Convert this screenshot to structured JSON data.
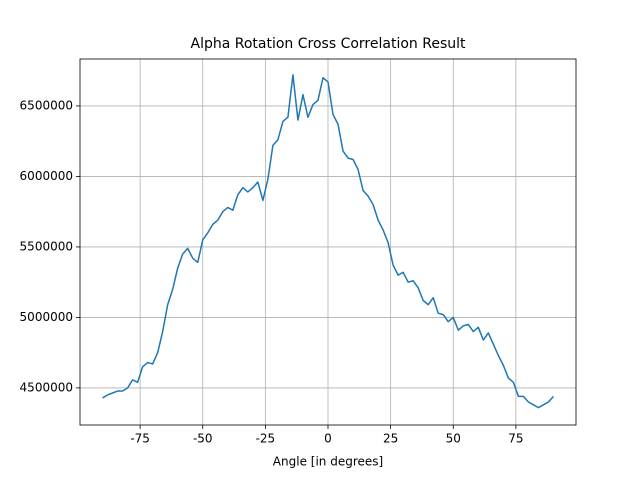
{
  "chart_data": {
    "type": "line",
    "title": "Alpha Rotation Cross Correlation Result",
    "xlabel": "Angle [in degrees]",
    "x": [
      -90,
      -88,
      -86,
      -84,
      -82,
      -80,
      -78,
      -76,
      -74,
      -72,
      -70,
      -68,
      -66,
      -64,
      -62,
      -60,
      -58,
      -56,
      -54,
      -52,
      -50,
      -48,
      -46,
      -44,
      -42,
      -40,
      -38,
      -36,
      -34,
      -32,
      -30,
      -28,
      -26,
      -24,
      -22,
      -20,
      -18,
      -16,
      -14,
      -12,
      -10,
      -8,
      -6,
      -4,
      -2,
      0,
      2,
      4,
      6,
      8,
      10,
      12,
      14,
      16,
      18,
      20,
      22,
      24,
      26,
      28,
      30,
      32,
      34,
      36,
      38,
      40,
      42,
      44,
      46,
      48,
      50,
      52,
      54,
      56,
      58,
      60,
      62,
      64,
      66,
      68,
      70,
      72,
      74,
      76,
      78,
      80,
      82,
      84,
      86,
      88,
      90
    ],
    "values": [
      4429000,
      4450000,
      4464000,
      4478000,
      4478000,
      4500000,
      4557000,
      4540000,
      4650000,
      4680000,
      4670000,
      4750000,
      4900000,
      5090000,
      5200000,
      5350000,
      5450000,
      5490000,
      5420000,
      5390000,
      5550000,
      5600000,
      5660000,
      5690000,
      5750000,
      5780000,
      5760000,
      5870000,
      5920000,
      5890000,
      5920000,
      5960000,
      5830000,
      5980000,
      6220000,
      6260000,
      6390000,
      6420000,
      6720000,
      6400000,
      6580000,
      6420000,
      6510000,
      6540000,
      6700000,
      6670000,
      6440000,
      6370000,
      6180000,
      6130000,
      6120000,
      6050000,
      5900000,
      5860000,
      5800000,
      5690000,
      5620000,
      5530000,
      5370000,
      5300000,
      5320000,
      5250000,
      5260000,
      5210000,
      5120000,
      5090000,
      5140000,
      5030000,
      5020000,
      4970000,
      5000000,
      4910000,
      4940000,
      4950000,
      4900000,
      4930000,
      4840000,
      4890000,
      4810000,
      4730000,
      4660000,
      4570000,
      4540000,
      4440000,
      4440000,
      4400000,
      4380000,
      4360000,
      4380000,
      4400000,
      4440000
    ],
    "color": "#1f77b4",
    "xlim": [
      -99,
      99
    ],
    "xticks": [
      -75,
      -50,
      -25,
      0,
      25,
      50,
      75
    ],
    "ylim": [
      4237000,
      6833000
    ],
    "yticks": [
      4500000,
      5000000,
      5500000,
      6000000,
      6500000
    ],
    "grid": true
  }
}
